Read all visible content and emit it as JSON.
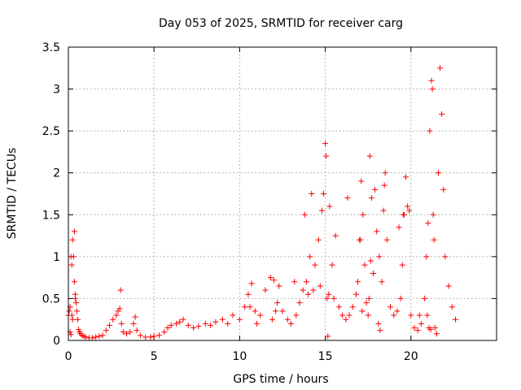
{
  "chart_data": {
    "type": "scatter",
    "title": "Day 053 of 2025, SRMTID for receiver carg",
    "xlabel": "GPS time / hours",
    "ylabel": "SRMTID / TECUs",
    "xlim": [
      0,
      25
    ],
    "ylim": [
      0,
      3.5
    ],
    "xticks": [
      0,
      5,
      10,
      15,
      20
    ],
    "xtick_labels": [
      "0",
      "5",
      "10",
      "15",
      "20"
    ],
    "yticks": [
      0,
      0.5,
      1,
      1.5,
      2,
      2.5,
      3,
      3.5
    ],
    "ytick_labels": [
      "0",
      "0.5",
      "1",
      "1.5",
      "2",
      "2.5",
      "3",
      "3.5"
    ],
    "grid": true,
    "marker": "+",
    "colors": {
      "series": "#ff0000",
      "grid": "#a0a0a0",
      "axis": "#000000"
    },
    "series": [
      {
        "name": "SRMTID",
        "x": [
          0.0,
          0.05,
          0.1,
          0.15,
          0.2,
          0.25,
          0.3,
          0.35,
          0.4,
          0.45,
          0.5,
          0.55,
          0.6,
          0.65,
          0.7,
          0.8,
          0.9,
          1.0,
          1.2,
          1.4,
          1.6,
          1.8,
          2.0,
          2.2,
          2.4,
          2.6,
          2.8,
          2.9,
          3.0,
          3.1,
          3.2,
          3.4,
          3.6,
          3.8,
          3.9,
          4.0,
          4.2,
          4.5,
          4.8,
          5.0,
          5.3,
          5.6,
          5.8,
          6.0,
          6.3,
          6.5,
          6.7,
          7.0,
          7.3,
          7.6,
          8.0,
          8.3,
          8.6,
          9.0,
          9.3,
          9.6,
          10.0,
          10.3,
          10.5,
          10.7,
          10.9,
          11.2,
          11.5,
          11.8,
          12.0,
          12.2,
          12.5,
          12.8,
          13.0,
          13.3,
          13.5,
          13.7,
          13.9,
          14.0,
          14.2,
          14.4,
          14.6,
          14.8,
          14.9,
          15.0,
          15.05,
          15.1,
          15.2,
          15.4,
          15.6,
          15.8,
          16.0,
          16.2,
          16.4,
          16.6,
          16.8,
          17.0,
          17.1,
          17.2,
          17.3,
          17.4,
          17.5,
          17.6,
          17.7,
          17.8,
          17.9,
          18.0,
          18.1,
          18.2,
          18.3,
          18.4,
          18.5,
          18.6,
          18.8,
          19.0,
          19.2,
          19.4,
          19.5,
          19.6,
          19.7,
          19.8,
          20.0,
          20.2,
          20.4,
          20.6,
          20.8,
          20.9,
          21.0,
          21.1,
          21.2,
          21.3,
          21.4,
          21.5,
          21.6,
          21.7,
          21.8,
          21.9,
          22.0,
          22.2,
          22.4,
          22.6,
          21.05,
          21.15,
          21.25,
          21.35,
          20.95,
          15.15,
          15.25,
          14.1,
          14.3,
          13.8,
          17.65,
          17.55,
          18.45,
          19.55,
          0.25,
          0.35,
          0.1,
          3.05,
          12.1,
          11.9,
          10.6,
          14.7,
          15.5,
          16.9,
          17.05,
          18.15,
          19.9,
          20.5,
          16.3,
          17.15,
          0.2,
          0.15,
          0.4,
          11.0,
          12.3,
          13.2,
          19.3
        ],
        "y": [
          0.3,
          0.35,
          0.4,
          0.07,
          0.9,
          1.2,
          1.0,
          0.7,
          0.55,
          0.45,
          0.35,
          0.25,
          0.13,
          0.1,
          0.08,
          0.06,
          0.05,
          0.04,
          0.03,
          0.03,
          0.04,
          0.05,
          0.06,
          0.12,
          0.18,
          0.25,
          0.3,
          0.35,
          0.38,
          0.2,
          0.1,
          0.08,
          0.1,
          0.2,
          0.28,
          0.12,
          0.06,
          0.04,
          0.04,
          0.05,
          0.06,
          0.1,
          0.15,
          0.18,
          0.2,
          0.22,
          0.25,
          0.18,
          0.15,
          0.17,
          0.2,
          0.18,
          0.22,
          0.25,
          0.2,
          0.3,
          0.25,
          0.4,
          0.55,
          0.68,
          0.35,
          0.3,
          0.6,
          0.75,
          0.72,
          0.45,
          0.35,
          0.25,
          0.2,
          0.3,
          0.45,
          0.6,
          0.7,
          0.55,
          1.75,
          0.9,
          1.2,
          1.55,
          1.75,
          2.35,
          2.2,
          0.5,
          0.55,
          0.9,
          1.25,
          0.4,
          0.3,
          0.25,
          0.3,
          0.4,
          0.55,
          1.2,
          1.9,
          1.5,
          0.9,
          0.45,
          0.3,
          2.2,
          1.7,
          0.8,
          1.8,
          1.3,
          0.2,
          0.12,
          0.7,
          1.55,
          2.0,
          1.2,
          0.4,
          0.3,
          0.35,
          0.5,
          0.9,
          1.5,
          1.95,
          1.6,
          0.3,
          0.15,
          0.12,
          0.2,
          0.5,
          1.0,
          1.4,
          2.5,
          3.1,
          1.5,
          0.15,
          0.08,
          2.0,
          3.25,
          2.7,
          1.8,
          1.0,
          0.65,
          0.4,
          0.25,
          0.15,
          0.13,
          3.0,
          1.2,
          0.3,
          0.05,
          1.6,
          1.0,
          0.6,
          1.5,
          0.95,
          0.5,
          1.85,
          1.5,
          0.25,
          1.3,
          0.1,
          0.6,
          0.35,
          0.25,
          0.4,
          0.65,
          0.5,
          0.7,
          1.2,
          1.0,
          1.55,
          0.3,
          1.7,
          0.35,
          0.3,
          1.0,
          0.5,
          0.2,
          0.65,
          0.7,
          1.35
        ]
      }
    ]
  }
}
